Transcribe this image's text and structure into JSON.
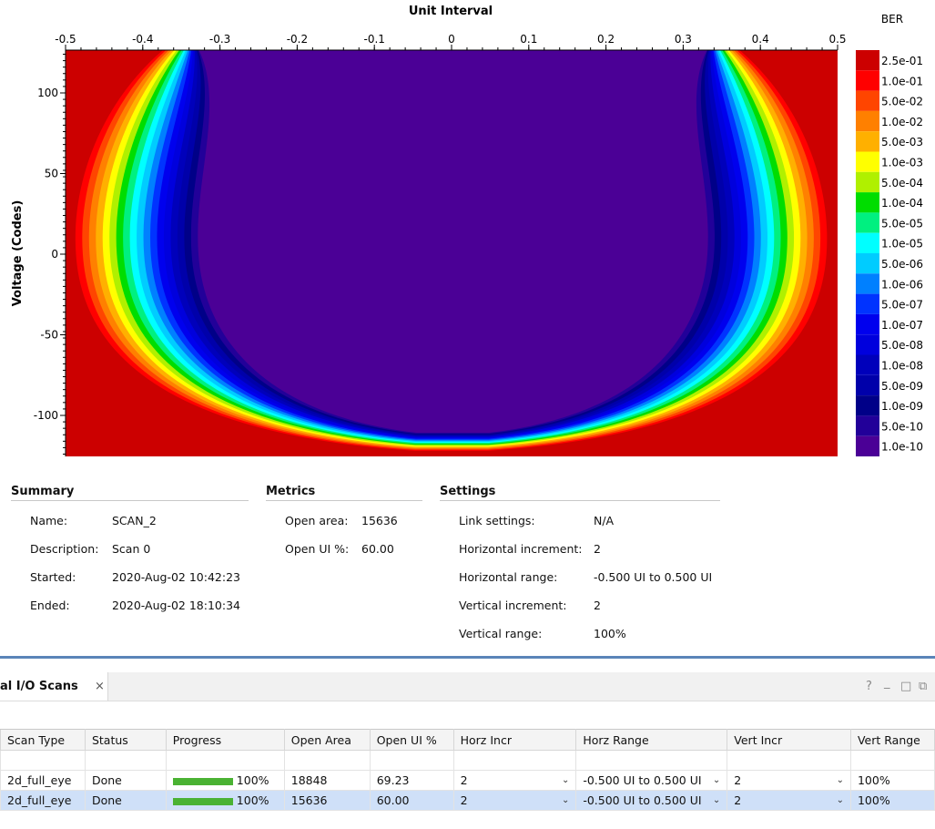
{
  "chart": {
    "title": "Unit Interval",
    "ylabel": "Voltage (Codes)",
    "legend_title": "BER",
    "x_ticks": [
      "-0.5",
      "-0.4",
      "-0.3",
      "-0.2",
      "-0.1",
      "0",
      "0.1",
      "0.2",
      "0.3",
      "0.4",
      "0.5"
    ],
    "y_ticks": [
      "100",
      "50",
      "0",
      "-50",
      "-100"
    ],
    "legend": [
      {
        "label": "2.5e-01",
        "color": "#cc0000"
      },
      {
        "label": "1.0e-01",
        "color": "#ff0000"
      },
      {
        "label": "5.0e-02",
        "color": "#ff4500"
      },
      {
        "label": "1.0e-02",
        "color": "#ff8000"
      },
      {
        "label": "5.0e-03",
        "color": "#ffb000"
      },
      {
        "label": "1.0e-03",
        "color": "#ffff00"
      },
      {
        "label": "5.0e-04",
        "color": "#b0f000"
      },
      {
        "label": "1.0e-04",
        "color": "#00dd00"
      },
      {
        "label": "5.0e-05",
        "color": "#00f080"
      },
      {
        "label": "1.0e-05",
        "color": "#00ffff"
      },
      {
        "label": "5.0e-06",
        "color": "#00ccff"
      },
      {
        "label": "1.0e-06",
        "color": "#0080ff"
      },
      {
        "label": "5.0e-07",
        "color": "#0033ff"
      },
      {
        "label": "1.0e-07",
        "color": "#0000ee"
      },
      {
        "label": "5.0e-08",
        "color": "#0000dd"
      },
      {
        "label": "1.0e-08",
        "color": "#0000bb"
      },
      {
        "label": "5.0e-09",
        "color": "#0000aa"
      },
      {
        "label": "1.0e-09",
        "color": "#000088"
      },
      {
        "label": "5.0e-10",
        "color": "#220099"
      },
      {
        "label": "1.0e-10",
        "color": "#4b0096"
      }
    ]
  },
  "chart_data": {
    "type": "heatmap",
    "xlabel": "Unit Interval",
    "ylabel": "Voltage (Codes)",
    "xlim": [
      -0.5,
      0.5
    ],
    "ylim": [
      -125,
      125
    ],
    "colorbar_label": "BER",
    "colorbar_levels": [
      "2.5e-01",
      "1.0e-01",
      "5.0e-02",
      "1.0e-02",
      "5.0e-03",
      "1.0e-03",
      "5.0e-04",
      "1.0e-04",
      "5.0e-05",
      "1.0e-05",
      "5.0e-06",
      "1.0e-06",
      "5.0e-07",
      "1.0e-07",
      "5.0e-08",
      "1.0e-08",
      "5.0e-09",
      "1.0e-09",
      "5.0e-10",
      "1.0e-10"
    ]
  },
  "summary": {
    "title": "Summary",
    "rows": [
      {
        "label": "Name:",
        "value": "SCAN_2"
      },
      {
        "label": "Description:",
        "value": "Scan 0"
      },
      {
        "label": "Started:",
        "value": "2020-Aug-02 10:42:23"
      },
      {
        "label": "Ended:",
        "value": "2020-Aug-02 18:10:34"
      }
    ]
  },
  "metrics": {
    "title": "Metrics",
    "rows": [
      {
        "label": "Open area:",
        "value": "15636"
      },
      {
        "label": "Open UI %:",
        "value": "60.00"
      }
    ]
  },
  "settings": {
    "title": "Settings",
    "rows": [
      {
        "label": "Link settings:",
        "value": "N/A"
      },
      {
        "label": "Horizontal increment:",
        "value": "2"
      },
      {
        "label": "Horizontal range:",
        "value": "-0.500 UI to 0.500 UI"
      },
      {
        "label": "Vertical increment:",
        "value": "2"
      },
      {
        "label": "Vertical range:",
        "value": "100%"
      }
    ]
  },
  "panel": {
    "tab_title": "al I/O Scans",
    "close": "×",
    "icons": {
      "help": "?",
      "minimize": "_",
      "maximize": "□",
      "float": "⧉"
    }
  },
  "table": {
    "columns": [
      "Scan Type",
      "Status",
      "Progress",
      "Open Area",
      "Open UI %",
      "Horz Incr",
      "Horz Range",
      "Vert Incr",
      "Vert Range"
    ],
    "rows": [
      {
        "scan_type": "2d_full_eye",
        "status": "Done",
        "progress": "100%",
        "progress_value": 1.0,
        "open_area": "18848",
        "open_ui": "69.23",
        "horz_incr": "2",
        "horz_range": "-0.500 UI to 0.500 UI",
        "vert_incr": "2",
        "vert_range": "100%",
        "selected": false
      },
      {
        "scan_type": "2d_full_eye",
        "status": "Done",
        "progress": "100%",
        "progress_value": 1.0,
        "open_area": "15636",
        "open_ui": "60.00",
        "horz_incr": "2",
        "horz_range": "-0.500 UI to 0.500 UI",
        "vert_incr": "2",
        "vert_range": "100%",
        "selected": true
      }
    ]
  }
}
